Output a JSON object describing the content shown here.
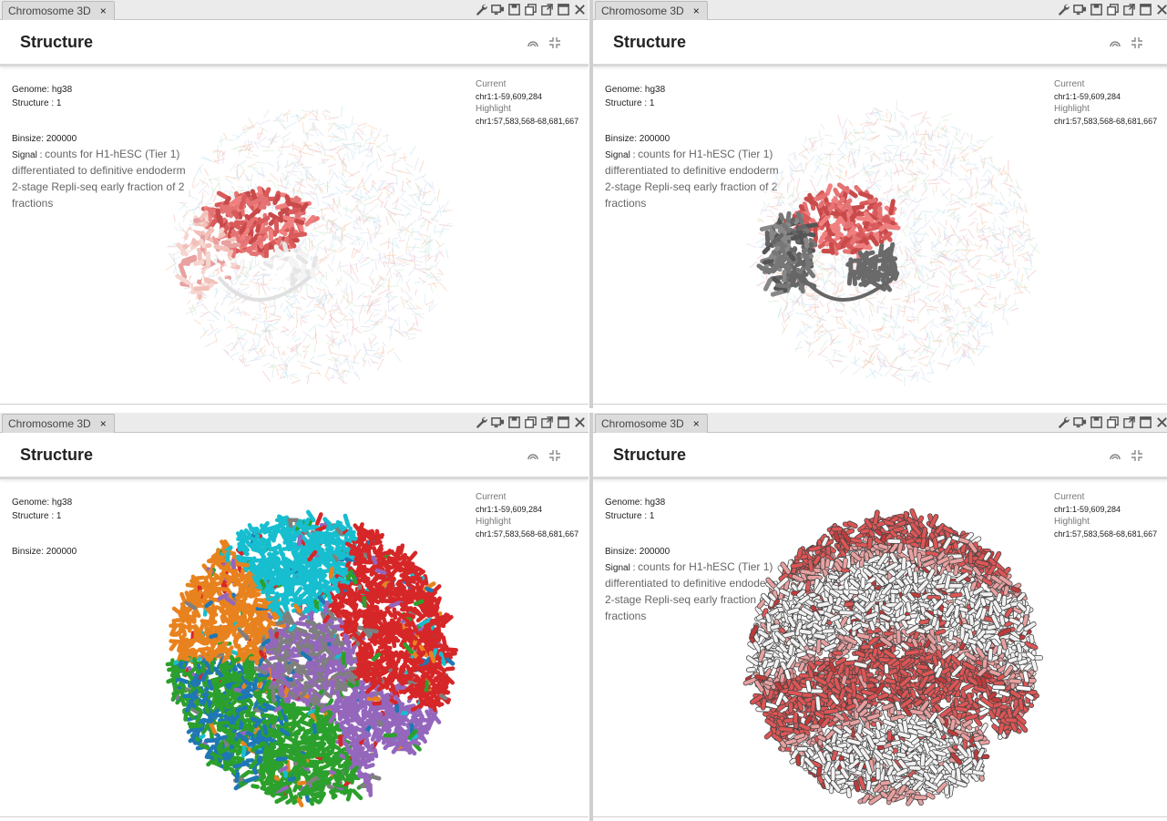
{
  "panels": [
    {
      "tab": "Chromosome 3D",
      "title": "Structure",
      "genome": "Genome: hg38",
      "structure": "Structure : 1",
      "binsize": "Binsize: 200000",
      "signal_label": "Signal :",
      "signal_desc": "counts for H1-hESC (Tier 1) differentiated to definitive endoderm 2-stage Repli-seq early fraction of 2 fractions",
      "current_label": "Current",
      "current_value": "chr1:1-59,609,284",
      "highlight_label": "Highlight",
      "highlight_value": "chr1:57,583,568-68,681,667",
      "palette": [
        "#e06060",
        "#f2c0b8",
        "#ffffff",
        "#cc4444"
      ],
      "style": "highlight-red"
    },
    {
      "tab": "Chromosome 3D",
      "title": "Structure",
      "genome": "Genome: hg38",
      "structure": "Structure : 1",
      "binsize": "Binsize: 200000",
      "signal_label": "Signal :",
      "signal_desc": "counts for H1-hESC (Tier 1) differentiated to definitive endoderm 2-stage Repli-seq early fraction of 2 fractions",
      "current_label": "Current",
      "current_value": "chr1:1-59,609,284",
      "highlight_label": "Highlight",
      "highlight_value": "chr1:57,583,568-68,681,667",
      "palette": [
        "#e06060",
        "#777777",
        "#555555",
        "#cc4444"
      ],
      "style": "highlight-gray"
    },
    {
      "tab": "Chromosome 3D",
      "title": "Structure",
      "genome": "Genome: hg38",
      "structure": "Structure : 1",
      "binsize": "Binsize: 200000",
      "signal_label": "",
      "signal_desc": "",
      "current_label": "Current",
      "current_value": "chr1:1-59,609,284",
      "highlight_label": "Highlight",
      "highlight_value": "chr1:57,583,568-68,681,667",
      "palette": [
        "#e8821e",
        "#2ca02c",
        "#17becf",
        "#d62728",
        "#9467bd",
        "#1f77b4",
        "#7f7f7f"
      ],
      "style": "segments"
    },
    {
      "tab": "Chromosome 3D",
      "title": "Structure",
      "genome": "Genome: hg38",
      "structure": "Structure : 1",
      "binsize": "Binsize: 200000",
      "signal_label": "Signal :",
      "signal_desc": "counts for H1-hESC (Tier 1) differentiated to definitive endoderm 2-stage Repli-seq early fraction of 2 fractions",
      "current_label": "Current",
      "current_value": "chr1:1-59,609,284",
      "highlight_label": "Highlight",
      "highlight_value": "chr1:57,583,568-68,681,667",
      "palette": [
        "#e8a0a0",
        "#f2f2f2",
        "#dd5555",
        "#c03a3a",
        "#ffffff"
      ],
      "style": "signal"
    }
  ],
  "toolbar_icons": [
    "wrench-icon",
    "screen-icon",
    "save-icon",
    "clone-icon",
    "popout-icon",
    "maximize-icon",
    "close-icon"
  ],
  "header_icons": [
    "arc-icon",
    "compress-icon"
  ]
}
